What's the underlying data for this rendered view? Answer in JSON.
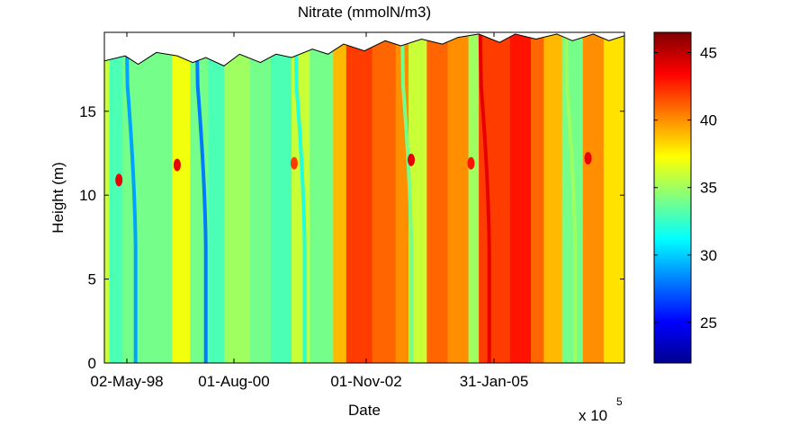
{
  "chart_data": {
    "type": "heatmap",
    "title": "Nitrate (mmolN/m3)",
    "xlabel": "Date",
    "ylabel": "Height (m)",
    "x_exponent_label": "x 10",
    "x_exponent_power": "5",
    "x_tick_labels": [
      "02-May-98",
      "01-Aug-00",
      "01-Nov-02",
      "31-Jan-05"
    ],
    "y_ticks": [
      0,
      5,
      10,
      15
    ],
    "ylim": [
      0,
      19.7
    ],
    "colorbar": {
      "colormap": "jet",
      "range": [
        22,
        46.5
      ],
      "ticks": [
        25,
        30,
        35,
        40,
        45
      ]
    },
    "column_bands": [
      {
        "x": [
          0.0,
          0.01
        ],
        "value": 36
      },
      {
        "x": [
          0.01,
          0.035
        ],
        "value": 33
      },
      {
        "x": [
          0.035,
          0.13
        ],
        "value": 34
      },
      {
        "x": [
          0.13,
          0.165
        ],
        "value": 37
      },
      {
        "x": [
          0.165,
          0.2
        ],
        "value": 34
      },
      {
        "x": [
          0.2,
          0.23
        ],
        "value": 33
      },
      {
        "x": [
          0.23,
          0.28
        ],
        "value": 35
      },
      {
        "x": [
          0.28,
          0.32
        ],
        "value": 34
      },
      {
        "x": [
          0.32,
          0.36
        ],
        "value": 33
      },
      {
        "x": [
          0.36,
          0.395
        ],
        "value": 36
      },
      {
        "x": [
          0.395,
          0.44
        ],
        "value": 34
      },
      {
        "x": [
          0.44,
          0.465
        ],
        "value": 39
      },
      {
        "x": [
          0.465,
          0.515
        ],
        "value": 42
      },
      {
        "x": [
          0.515,
          0.56
        ],
        "value": 41
      },
      {
        "x": [
          0.56,
          0.585
        ],
        "value": 40
      },
      {
        "x": [
          0.585,
          0.62
        ],
        "value": 36
      },
      {
        "x": [
          0.62,
          0.66
        ],
        "value": 41
      },
      {
        "x": [
          0.66,
          0.7
        ],
        "value": 40
      },
      {
        "x": [
          0.7,
          0.72
        ],
        "value": 35
      },
      {
        "x": [
          0.72,
          0.78
        ],
        "value": 42
      },
      {
        "x": [
          0.78,
          0.82
        ],
        "value": 43
      },
      {
        "x": [
          0.82,
          0.845
        ],
        "value": 41
      },
      {
        "x": [
          0.845,
          0.88
        ],
        "value": 39
      },
      {
        "x": [
          0.88,
          0.92
        ],
        "value": 34
      },
      {
        "x": [
          0.92,
          0.96
        ],
        "value": 40
      },
      {
        "x": [
          0.96,
          1.0
        ],
        "value": 38
      }
    ],
    "sharp_fronts": [
      {
        "x": 0.06,
        "value": 29
      },
      {
        "x": 0.195,
        "value": 28
      },
      {
        "x": 0.385,
        "value": 32
      },
      {
        "x": 0.59,
        "value": 34
      },
      {
        "x": 0.74,
        "value": 44
      },
      {
        "x": 0.905,
        "value": 35
      }
    ],
    "hotspots": [
      {
        "x": 0.028,
        "height": 10.9,
        "value": 44
      },
      {
        "x": 0.14,
        "height": 11.8,
        "value": 44
      },
      {
        "x": 0.365,
        "height": 11.9,
        "value": 42
      },
      {
        "x": 0.59,
        "height": 12.1,
        "value": 44
      },
      {
        "x": 0.705,
        "height": 11.9,
        "value": 43
      },
      {
        "x": 0.93,
        "height": 12.2,
        "value": 44
      }
    ],
    "surface_height": [
      [
        0.0,
        18.0
      ],
      [
        0.04,
        18.3
      ],
      [
        0.065,
        17.8
      ],
      [
        0.1,
        18.5
      ],
      [
        0.14,
        18.3
      ],
      [
        0.17,
        17.9
      ],
      [
        0.195,
        18.2
      ],
      [
        0.23,
        17.7
      ],
      [
        0.26,
        18.4
      ],
      [
        0.3,
        17.9
      ],
      [
        0.33,
        18.4
      ],
      [
        0.36,
        18.2
      ],
      [
        0.4,
        18.7
      ],
      [
        0.43,
        18.4
      ],
      [
        0.46,
        19.0
      ],
      [
        0.5,
        18.6
      ],
      [
        0.54,
        19.2
      ],
      [
        0.57,
        18.9
      ],
      [
        0.61,
        19.3
      ],
      [
        0.65,
        19.0
      ],
      [
        0.68,
        19.4
      ],
      [
        0.72,
        19.6
      ],
      [
        0.76,
        19.1
      ],
      [
        0.79,
        19.6
      ],
      [
        0.83,
        19.3
      ],
      [
        0.87,
        19.6
      ],
      [
        0.9,
        19.2
      ],
      [
        0.94,
        19.6
      ],
      [
        0.97,
        19.2
      ],
      [
        1.0,
        19.5
      ]
    ]
  }
}
